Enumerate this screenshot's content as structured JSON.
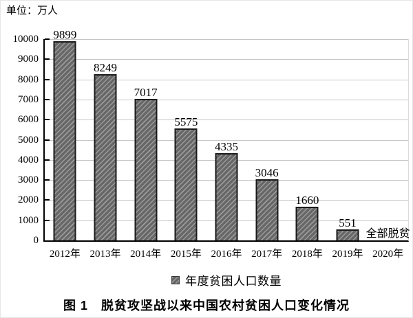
{
  "chart_data": {
    "type": "bar",
    "title": "图 1　脱贫攻坚战以来中国农村贫困人口变化情况",
    "unit_label": "单位：万人",
    "categories": [
      "2012年",
      "2013年",
      "2014年",
      "2015年",
      "2016年",
      "2017年",
      "2018年",
      "2019年",
      "2020年"
    ],
    "values": [
      9899,
      8249,
      7017,
      5575,
      4335,
      3046,
      1660,
      551,
      null
    ],
    "bar_value_labels": [
      "9899",
      "8249",
      "7017",
      "5575",
      "4335",
      "3046",
      "1660",
      "551",
      ""
    ],
    "annotations": [
      {
        "category": "2020年",
        "text": "全部脱贫"
      }
    ],
    "legend": [
      "年度贫困人口数量"
    ],
    "legend_position": "bottom",
    "xlabel": "",
    "ylabel": "",
    "ylim": [
      0,
      10000
    ],
    "ytick_step": 1000,
    "grid": true
  },
  "colors": {
    "background": "#ffffff",
    "text": "#000000",
    "axis": "#000000",
    "gridline": "#c6c6c6",
    "bar_fill": "#676767",
    "bar_hatch_line": "#9b9b9b",
    "bar_border": "#1a1a1a"
  }
}
